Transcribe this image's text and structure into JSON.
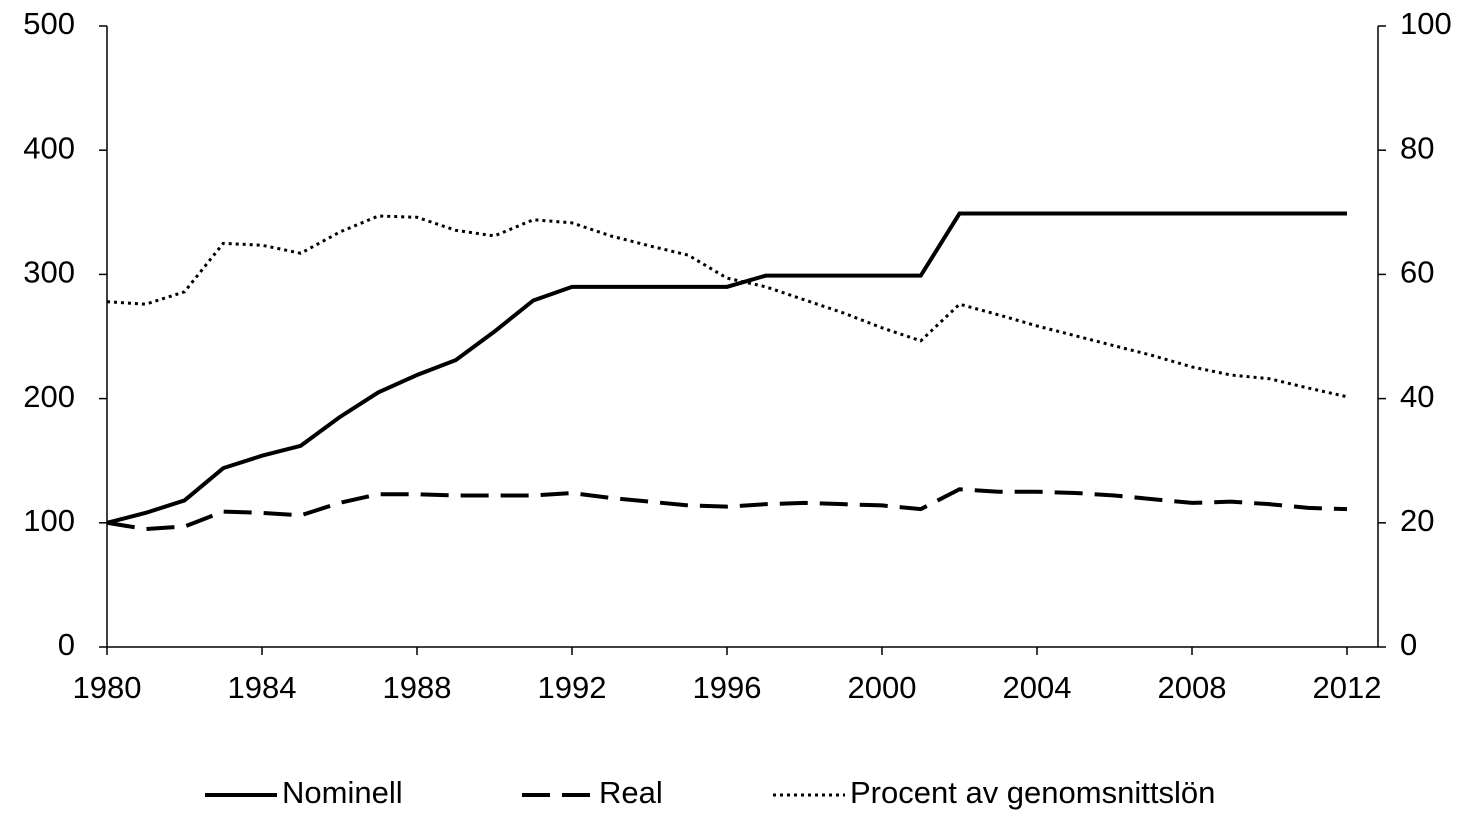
{
  "chart_data": {
    "type": "line",
    "x": [
      1980,
      1981,
      1982,
      1983,
      1984,
      1985,
      1986,
      1987,
      1988,
      1989,
      1990,
      1991,
      1992,
      1993,
      1994,
      1995,
      1996,
      1997,
      1998,
      1999,
      2000,
      2001,
      2002,
      2003,
      2004,
      2005,
      2006,
      2007,
      2008,
      2009,
      2010,
      2011,
      2012
    ],
    "xlim": [
      1980,
      2012.8
    ],
    "xticks": [
      1980,
      1984,
      1988,
      1992,
      1996,
      2000,
      2004,
      2008,
      2012
    ],
    "ylim": [
      0,
      500
    ],
    "yticks": [
      0,
      100,
      200,
      300,
      400,
      500
    ],
    "y2lim": [
      0,
      100
    ],
    "y2ticks": [
      0,
      20,
      40,
      60,
      80,
      100
    ],
    "legend": "bottom",
    "series": [
      {
        "name": "Nominell",
        "color": "#000000",
        "line_style": "solid",
        "values": [
          100,
          108,
          118,
          144,
          154,
          162,
          185,
          205,
          219,
          231,
          254,
          279,
          290,
          290,
          290,
          290,
          290,
          299,
          299,
          299,
          299,
          299,
          349,
          349,
          349,
          349,
          349,
          349,
          349,
          349,
          349,
          349,
          349
        ]
      },
      {
        "name": "Real",
        "color": "#000000",
        "line_style": "dashed",
        "values": [
          100,
          95,
          97,
          109,
          108,
          106,
          116,
          123,
          123,
          122,
          122,
          122,
          124,
          120,
          117,
          114,
          113,
          115,
          116,
          115,
          114,
          111,
          127,
          125,
          125,
          124,
          122,
          119,
          116,
          117,
          115,
          112,
          111
        ]
      },
      {
        "name": "Procent av genomsnittslön",
        "color": "#000000",
        "line_style": "dotted",
        "axis": "y2",
        "values": [
          55.6,
          55.2,
          57.2,
          65,
          64.7,
          63.4,
          66.8,
          69.4,
          69.2,
          67.1,
          66.2,
          68.8,
          68.3,
          66.2,
          64.6,
          63.1,
          59.4,
          58,
          55.9,
          53.8,
          51.4,
          49.3,
          55.2,
          53.5,
          51.7,
          50.1,
          48.5,
          46.9,
          45.1,
          43.8,
          43.2,
          41.7,
          40.3
        ]
      }
    ]
  }
}
